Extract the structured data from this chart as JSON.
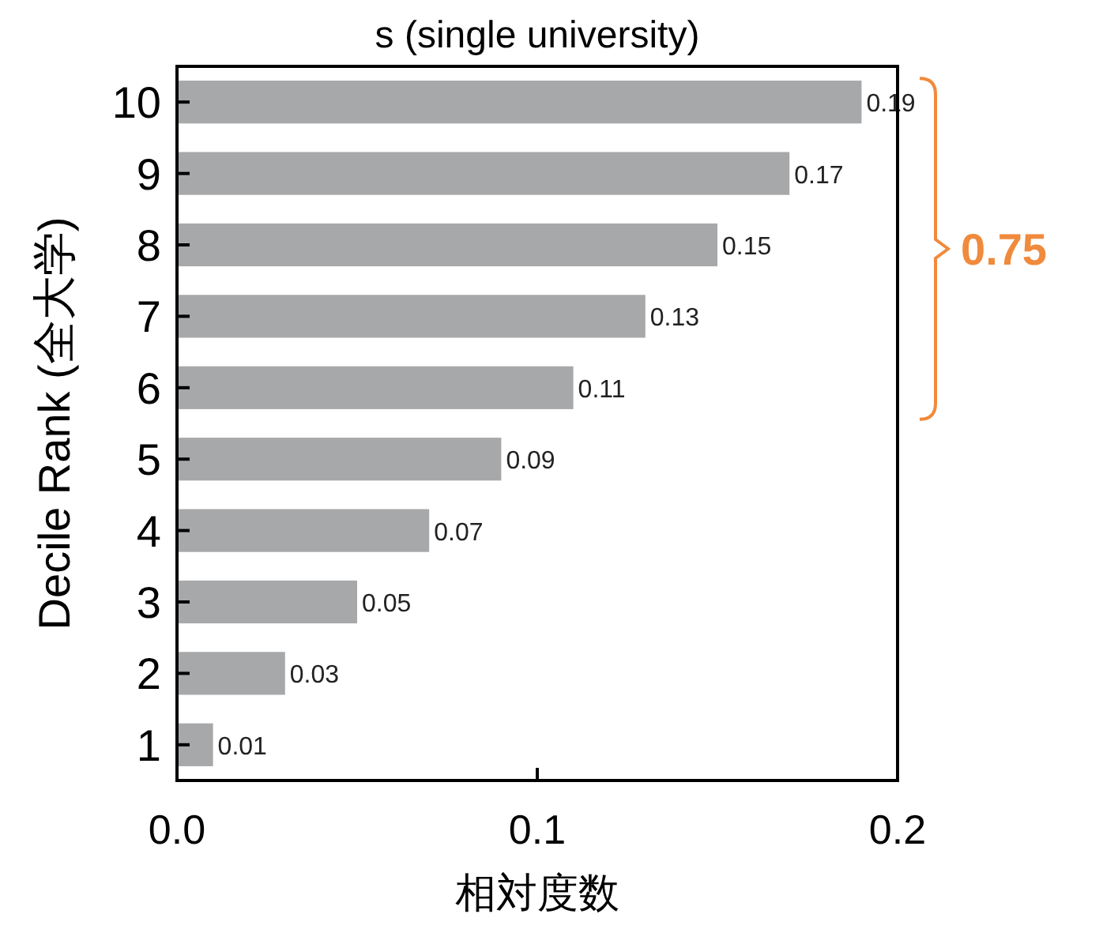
{
  "chart_data": {
    "type": "bar",
    "orientation": "horizontal",
    "title": "s (single university)",
    "xlabel": "相対度数",
    "ylabel": "Decile Rank (全大学)",
    "categories": [
      "10",
      "9",
      "8",
      "7",
      "6",
      "5",
      "4",
      "3",
      "2",
      "1"
    ],
    "values": [
      0.19,
      0.17,
      0.15,
      0.13,
      0.11,
      0.09,
      0.07,
      0.05,
      0.03,
      0.01
    ],
    "color": "#a7a8aa",
    "xlim": [
      0,
      0.2
    ],
    "xticks": [
      {
        "value": 0,
        "label": "0.0"
      },
      0.1,
      0.2
    ],
    "data_labels": true,
    "grid": false,
    "annotations": [
      "0.75"
    ]
  }
}
